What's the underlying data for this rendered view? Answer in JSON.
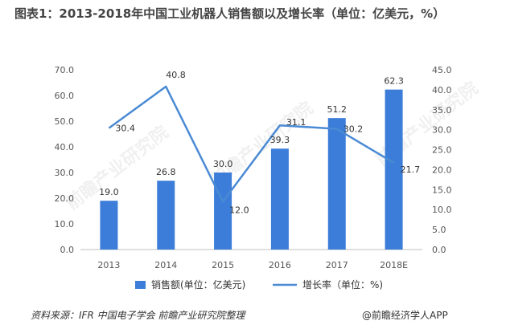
{
  "title": "图表1：2013-2018年中国工业机器人销售额以及增长率（单位：亿美元，%）",
  "source": "资料来源：IFR 中国电子学会  前瞻产业研究院整理",
  "brand": "@前瞻经济学人APP",
  "watermarks": [
    "前瞻产业研究院",
    "前瞻产业研究院",
    "前瞻产业研究院"
  ],
  "chart_data": {
    "type": "bar",
    "categories": [
      "2013",
      "2014",
      "2015",
      "2016",
      "2017",
      "2018E"
    ],
    "series": [
      {
        "name": "销售额(单位：亿美元)",
        "type": "bar",
        "axis": "left",
        "color": "#3b7dd8",
        "values": [
          19.0,
          26.8,
          30.0,
          39.3,
          51.2,
          62.3
        ],
        "labels": [
          "19.0",
          "26.8",
          "30.0",
          "39.3",
          "51.2",
          "62.3"
        ]
      },
      {
        "name": "增长率（单位：%)",
        "type": "line",
        "axis": "right",
        "color": "#4a8ad4",
        "values": [
          30.4,
          40.8,
          12.0,
          31.1,
          30.2,
          21.7
        ],
        "labels": [
          "30.4",
          "40.8",
          "12.0",
          "31.1",
          "30.2",
          "21.7"
        ]
      }
    ],
    "y_left": {
      "lim": [
        0,
        70
      ],
      "ticks": [
        "0.0",
        "10.0",
        "20.0",
        "30.0",
        "40.0",
        "50.0",
        "60.0",
        "70.0"
      ]
    },
    "y_right": {
      "lim": [
        0,
        45
      ],
      "ticks": [
        "0.0",
        "5.0",
        "10.0",
        "15.0",
        "20.0",
        "25.0",
        "30.0",
        "35.0",
        "40.0",
        "45.0"
      ]
    },
    "legend": "bottom-center",
    "grid": false
  }
}
